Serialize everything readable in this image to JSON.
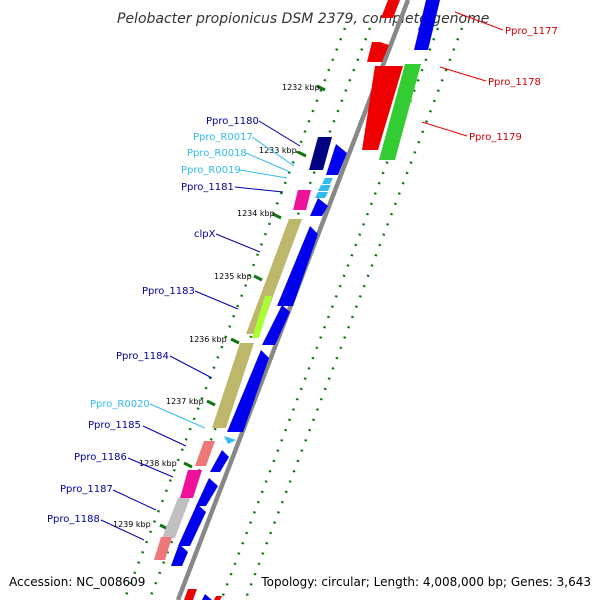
{
  "title": "Pelobacter propionicus DSM 2379, complete genome",
  "footer": {
    "accession": "Accession: NC_008609",
    "topology": "Topology: circular; Length: 4,008,000 bp; Genes: 3,643"
  },
  "colors": {
    "gene_blue": "#0000ee",
    "gene_red": "#ee0000",
    "gene_green": "#33cc33",
    "gene_navy": "#000080",
    "gene_magenta": "#ee1199",
    "gene_khaki": "#bdb76b",
    "gene_pink": "#ee7777",
    "gene_grey": "#c0c0c0",
    "gene_lime": "#aaff33",
    "rna_cyan": "#33bbee",
    "backbone": "#888888",
    "ticks": "#117711"
  },
  "ticks": [
    "1232 kbp",
    "1233 kbp",
    "1234 kbp",
    "1235 kbp",
    "1236 kbp",
    "1237 kbp",
    "1238 kbp",
    "1239 kbp"
  ],
  "right_labels": [
    "Ppro_1177",
    "Ppro_1178",
    "Ppro_1179"
  ],
  "left_labels": [
    "Ppro_1180",
    "Ppro_R0017",
    "Ppro_R0018",
    "Ppro_R0019",
    "Ppro_1181",
    "clpX",
    "Ppro_1183",
    "Ppro_1184",
    "Ppro_R0020",
    "Ppro_1185",
    "Ppro_1186",
    "Ppro_1187",
    "Ppro_1188"
  ]
}
